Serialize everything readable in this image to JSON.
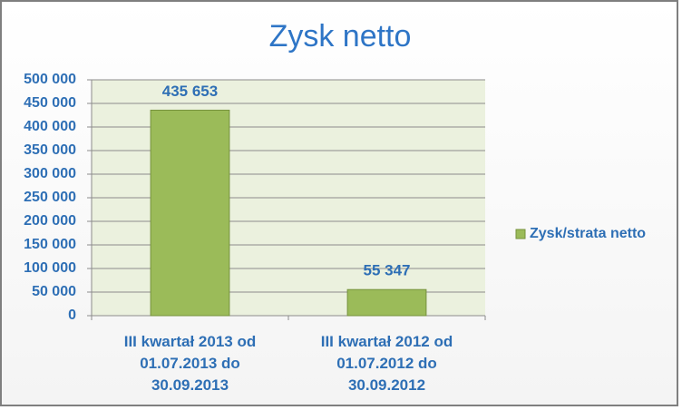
{
  "chart_data": {
    "type": "bar",
    "title": "Zysk netto",
    "categories": [
      "III kwartał 2013 od 01.07.2013 do 30.09.2013",
      "III kwartał 2012 od 01.07.2012 do 30.09.2012"
    ],
    "series": [
      {
        "name": "Zysk/strata netto",
        "color": "#9bbb59",
        "values": [
          435653,
          55347
        ],
        "value_labels": [
          "435 653",
          "55 347"
        ]
      }
    ],
    "ylim": [
      0,
      500000
    ],
    "yticks": [
      0,
      {
        "value": 50000,
        "label": "50 000"
      },
      {
        "value": 100000,
        "label": "100 000"
      },
      {
        "value": 150000,
        "label": "150 000"
      },
      {
        "value": 200000,
        "label": "200 000"
      },
      {
        "value": 250000,
        "label": "250 000"
      },
      {
        "value": 300000,
        "label": "300 000"
      },
      {
        "value": 350000,
        "label": "350 000"
      },
      {
        "value": 400000,
        "label": "400 000"
      },
      {
        "value": 450000,
        "label": "450 000"
      },
      {
        "value": 500000,
        "label": "500 000"
      }
    ],
    "grid": true,
    "legend": "right"
  }
}
